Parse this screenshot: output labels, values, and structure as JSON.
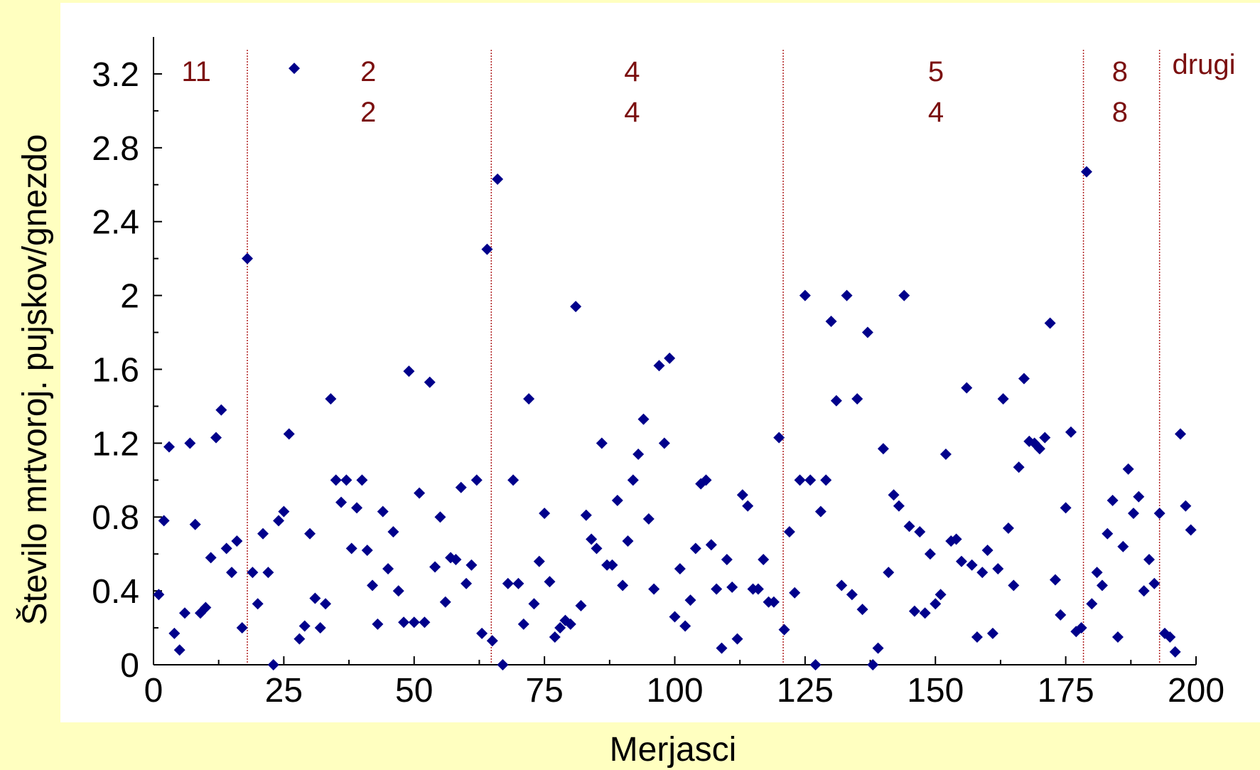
{
  "chart_data": {
    "type": "scatter",
    "xlabel": "Merjasci",
    "ylabel": "Število mrtvoroj. pujskov/gnezdo",
    "xlim": [
      0,
      200
    ],
    "ylim": [
      0,
      3.4
    ],
    "x_ticks": [
      0,
      25,
      50,
      75,
      100,
      125,
      150,
      175,
      200
    ],
    "y_ticks": [
      0,
      0.4,
      0.8,
      1.2,
      1.6,
      2,
      2.4,
      2.8,
      3.2
    ],
    "y_tick_labels": [
      "0",
      "0.4",
      "0.8",
      "1.2",
      "1.6",
      "2",
      "2.4",
      "2.8",
      "3.2"
    ],
    "marker": "diamond",
    "marker_color": "#00008b",
    "separator_color": "#b02020",
    "separators": [
      18,
      64.8,
      120.8,
      178.4,
      193
    ],
    "group_labels": [
      {
        "text": "11",
        "x": 8.2,
        "row": 1
      },
      {
        "text": "2",
        "x": 41.2,
        "row": 1
      },
      {
        "text": "2",
        "x": 41.2,
        "row": 2
      },
      {
        "text": "4",
        "x": 91.8,
        "row": 1
      },
      {
        "text": "4",
        "x": 91.8,
        "row": 2
      },
      {
        "text": "5",
        "x": 150.1,
        "row": 1
      },
      {
        "text": "4",
        "x": 150.1,
        "row": 2
      },
      {
        "text": "8",
        "x": 185.4,
        "row": 1
      },
      {
        "text": "8",
        "x": 185.4,
        "row": 2
      },
      {
        "text": "drugi",
        "x": 201.5,
        "row": 0
      }
    ],
    "points": [
      [
        1,
        0.38
      ],
      [
        2,
        0.78
      ],
      [
        3,
        1.18
      ],
      [
        4,
        0.17
      ],
      [
        5,
        0.08
      ],
      [
        6,
        0.28
      ],
      [
        7,
        1.2
      ],
      [
        8,
        0.76
      ],
      [
        9,
        0.28
      ],
      [
        10,
        0.31
      ],
      [
        11,
        0.58
      ],
      [
        12,
        1.23
      ],
      [
        13,
        1.38
      ],
      [
        14,
        0.63
      ],
      [
        15,
        0.5
      ],
      [
        16,
        0.67
      ],
      [
        17,
        0.2
      ],
      [
        18,
        2.2
      ],
      [
        19,
        0.5
      ],
      [
        20,
        0.33
      ],
      [
        21,
        0.71
      ],
      [
        22,
        0.5
      ],
      [
        23,
        0
      ],
      [
        24,
        0.78
      ],
      [
        25,
        0.83
      ],
      [
        26,
        1.25
      ],
      [
        27,
        3.23
      ],
      [
        28,
        0.14
      ],
      [
        29,
        0.21
      ],
      [
        30,
        0.71
      ],
      [
        31,
        0.36
      ],
      [
        32,
        0.2
      ],
      [
        33,
        0.33
      ],
      [
        34,
        1.44
      ],
      [
        35,
        1.0
      ],
      [
        36,
        0.88
      ],
      [
        37,
        1.0
      ],
      [
        38,
        0.63
      ],
      [
        39,
        0.85
      ],
      [
        40,
        1.0
      ],
      [
        41,
        0.62
      ],
      [
        42,
        0.43
      ],
      [
        43,
        0.22
      ],
      [
        44,
        0.83
      ],
      [
        45,
        0.52
      ],
      [
        46,
        0.72
      ],
      [
        47,
        0.4
      ],
      [
        48,
        0.23
      ],
      [
        49,
        1.59
      ],
      [
        50,
        0.23
      ],
      [
        51,
        0.93
      ],
      [
        52,
        0.23
      ],
      [
        53,
        1.53
      ],
      [
        54,
        0.53
      ],
      [
        55,
        0.8
      ],
      [
        56,
        0.34
      ],
      [
        57,
        0.58
      ],
      [
        58,
        0.57
      ],
      [
        59,
        0.96
      ],
      [
        60,
        0.44
      ],
      [
        61,
        0.54
      ],
      [
        62,
        1.0
      ],
      [
        63,
        0.17
      ],
      [
        64,
        2.25
      ],
      [
        65,
        0.13
      ],
      [
        66,
        2.63
      ],
      [
        67,
        0
      ],
      [
        68,
        0.44
      ],
      [
        69,
        1.0
      ],
      [
        70,
        0.44
      ],
      [
        71,
        0.22
      ],
      [
        72,
        1.44
      ],
      [
        73,
        0.33
      ],
      [
        74,
        0.56
      ],
      [
        75,
        0.82
      ],
      [
        76,
        0.45
      ],
      [
        77,
        0.15
      ],
      [
        78,
        0.2
      ],
      [
        79,
        0.24
      ],
      [
        80,
        0.22
      ],
      [
        81,
        1.94
      ],
      [
        82,
        0.32
      ],
      [
        83,
        0.81
      ],
      [
        84,
        0.68
      ],
      [
        85,
        0.63
      ],
      [
        86,
        1.2
      ],
      [
        87,
        0.54
      ],
      [
        88,
        0.54
      ],
      [
        89,
        0.89
      ],
      [
        90,
        0.43
      ],
      [
        91,
        0.67
      ],
      [
        92,
        1.0
      ],
      [
        93,
        1.14
      ],
      [
        94,
        1.33
      ],
      [
        95,
        0.79
      ],
      [
        96,
        0.41
      ],
      [
        97,
        1.62
      ],
      [
        98,
        1.2
      ],
      [
        99,
        1.66
      ],
      [
        100,
        0.26
      ],
      [
        101,
        0.52
      ],
      [
        102,
        0.21
      ],
      [
        103,
        0.35
      ],
      [
        104,
        0.63
      ],
      [
        105,
        0.98
      ],
      [
        106,
        1.0
      ],
      [
        107,
        0.65
      ],
      [
        108,
        0.41
      ],
      [
        109,
        0.09
      ],
      [
        110,
        0.57
      ],
      [
        111,
        0.42
      ],
      [
        112,
        0.14
      ],
      [
        113,
        0.92
      ],
      [
        114,
        0.86
      ],
      [
        115,
        0.41
      ],
      [
        116,
        0.41
      ],
      [
        117,
        0.57
      ],
      [
        118,
        0.34
      ],
      [
        119,
        0.34
      ],
      [
        120,
        1.23
      ],
      [
        121,
        0.19
      ],
      [
        122,
        0.72
      ],
      [
        123,
        0.39
      ],
      [
        124,
        1.0
      ],
      [
        125,
        2.0
      ],
      [
        126,
        1.0
      ],
      [
        127,
        0
      ],
      [
        128,
        0.83
      ],
      [
        129,
        1.0
      ],
      [
        130,
        1.86
      ],
      [
        131,
        1.43
      ],
      [
        132,
        0.43
      ],
      [
        133,
        2.0
      ],
      [
        134,
        0.38
      ],
      [
        135,
        1.44
      ],
      [
        136,
        0.3
      ],
      [
        137,
        1.8
      ],
      [
        138,
        0
      ],
      [
        139,
        0.09
      ],
      [
        140,
        1.17
      ],
      [
        141,
        0.5
      ],
      [
        142,
        0.92
      ],
      [
        143,
        0.86
      ],
      [
        144,
        2.0
      ],
      [
        145,
        0.75
      ],
      [
        146,
        0.29
      ],
      [
        147,
        0.72
      ],
      [
        148,
        0.28
      ],
      [
        149,
        0.6
      ],
      [
        150,
        0.33
      ],
      [
        151,
        0.38
      ],
      [
        152,
        1.14
      ],
      [
        153,
        0.67
      ],
      [
        154,
        0.68
      ],
      [
        155,
        0.56
      ],
      [
        156,
        1.5
      ],
      [
        157,
        0.54
      ],
      [
        158,
        0.15
      ],
      [
        159,
        0.5
      ],
      [
        160,
        0.62
      ],
      [
        161,
        0.17
      ],
      [
        162,
        0.52
      ],
      [
        163,
        1.44
      ],
      [
        164,
        0.74
      ],
      [
        165,
        0.43
      ],
      [
        166,
        1.07
      ],
      [
        167,
        1.55
      ],
      [
        168,
        1.21
      ],
      [
        169,
        1.2
      ],
      [
        170,
        1.17
      ],
      [
        171,
        1.23
      ],
      [
        172,
        1.85
      ],
      [
        173,
        0.46
      ],
      [
        174,
        0.27
      ],
      [
        175,
        0.85
      ],
      [
        176,
        1.26
      ],
      [
        177,
        0.18
      ],
      [
        178,
        0.2
      ],
      [
        179,
        2.67
      ],
      [
        180,
        0.33
      ],
      [
        181,
        0.5
      ],
      [
        182,
        0.43
      ],
      [
        183,
        0.71
      ],
      [
        184,
        0.89
      ],
      [
        185,
        0.15
      ],
      [
        186,
        0.64
      ],
      [
        187,
        1.06
      ],
      [
        188,
        0.82
      ],
      [
        189,
        0.91
      ],
      [
        190,
        0.4
      ],
      [
        191,
        0.57
      ],
      [
        192,
        0.44
      ],
      [
        193,
        0.82
      ],
      [
        194,
        0.17
      ],
      [
        195,
        0.15
      ],
      [
        196,
        0.07
      ],
      [
        197,
        1.25
      ],
      [
        198,
        0.86
      ],
      [
        199,
        0.73
      ]
    ]
  }
}
